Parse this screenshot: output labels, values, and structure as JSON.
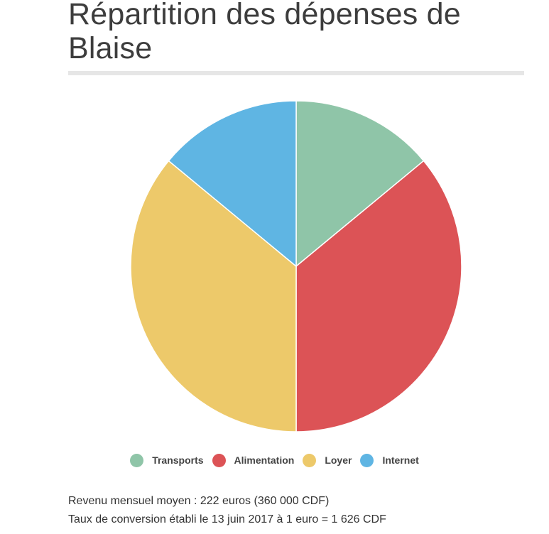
{
  "title": "Répartition des dépenses de Blaise",
  "notes": {
    "income": "Revenu mensuel moyen : 222 euros (360 000 CDF)",
    "rate": "Taux de conversion établi le 13 juin 2017 à 1 euro = 1 626 CDF"
  },
  "chart_data": {
    "type": "pie",
    "title": "Répartition des dépenses de Blaise",
    "categories": [
      "Transports",
      "Alimentation",
      "Loyer",
      "Internet"
    ],
    "values": [
      14,
      36,
      36,
      14
    ],
    "colors": [
      "#8fc5a8",
      "#dc5356",
      "#edc96a",
      "#5fb5e3"
    ],
    "legend_position": "bottom"
  }
}
